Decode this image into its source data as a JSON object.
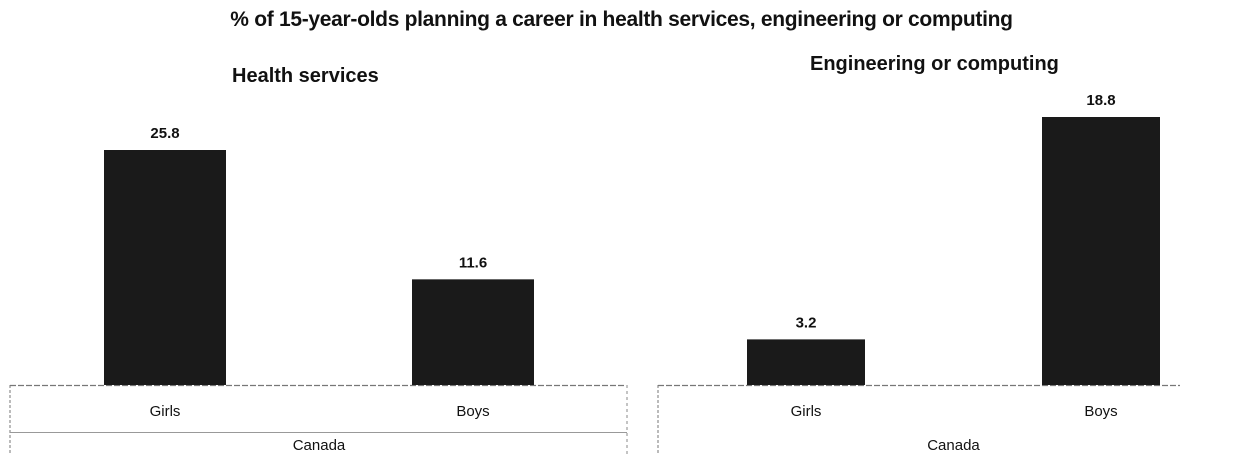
{
  "title": "% of 15-year-olds planning a career in health services, engineering or computing",
  "chart_data": [
    {
      "type": "bar",
      "title": "Health services",
      "categories": [
        "Girls",
        "Boys"
      ],
      "group_label": "Canada",
      "values": [
        25.8,
        11.6
      ],
      "value_labels": [
        "25.8",
        "11.6"
      ],
      "ylim": [
        0,
        27
      ],
      "grid": false,
      "bar_color": "#1a1a1a"
    },
    {
      "type": "bar",
      "title": "Engineering or computing",
      "categories": [
        "Girls",
        "Boys"
      ],
      "group_label": "Canada",
      "values": [
        3.2,
        18.8
      ],
      "value_labels": [
        "3.2",
        "18.8"
      ],
      "ylim": [
        0,
        19.8
      ],
      "grid": false,
      "bar_color": "#1a1a1a"
    }
  ]
}
